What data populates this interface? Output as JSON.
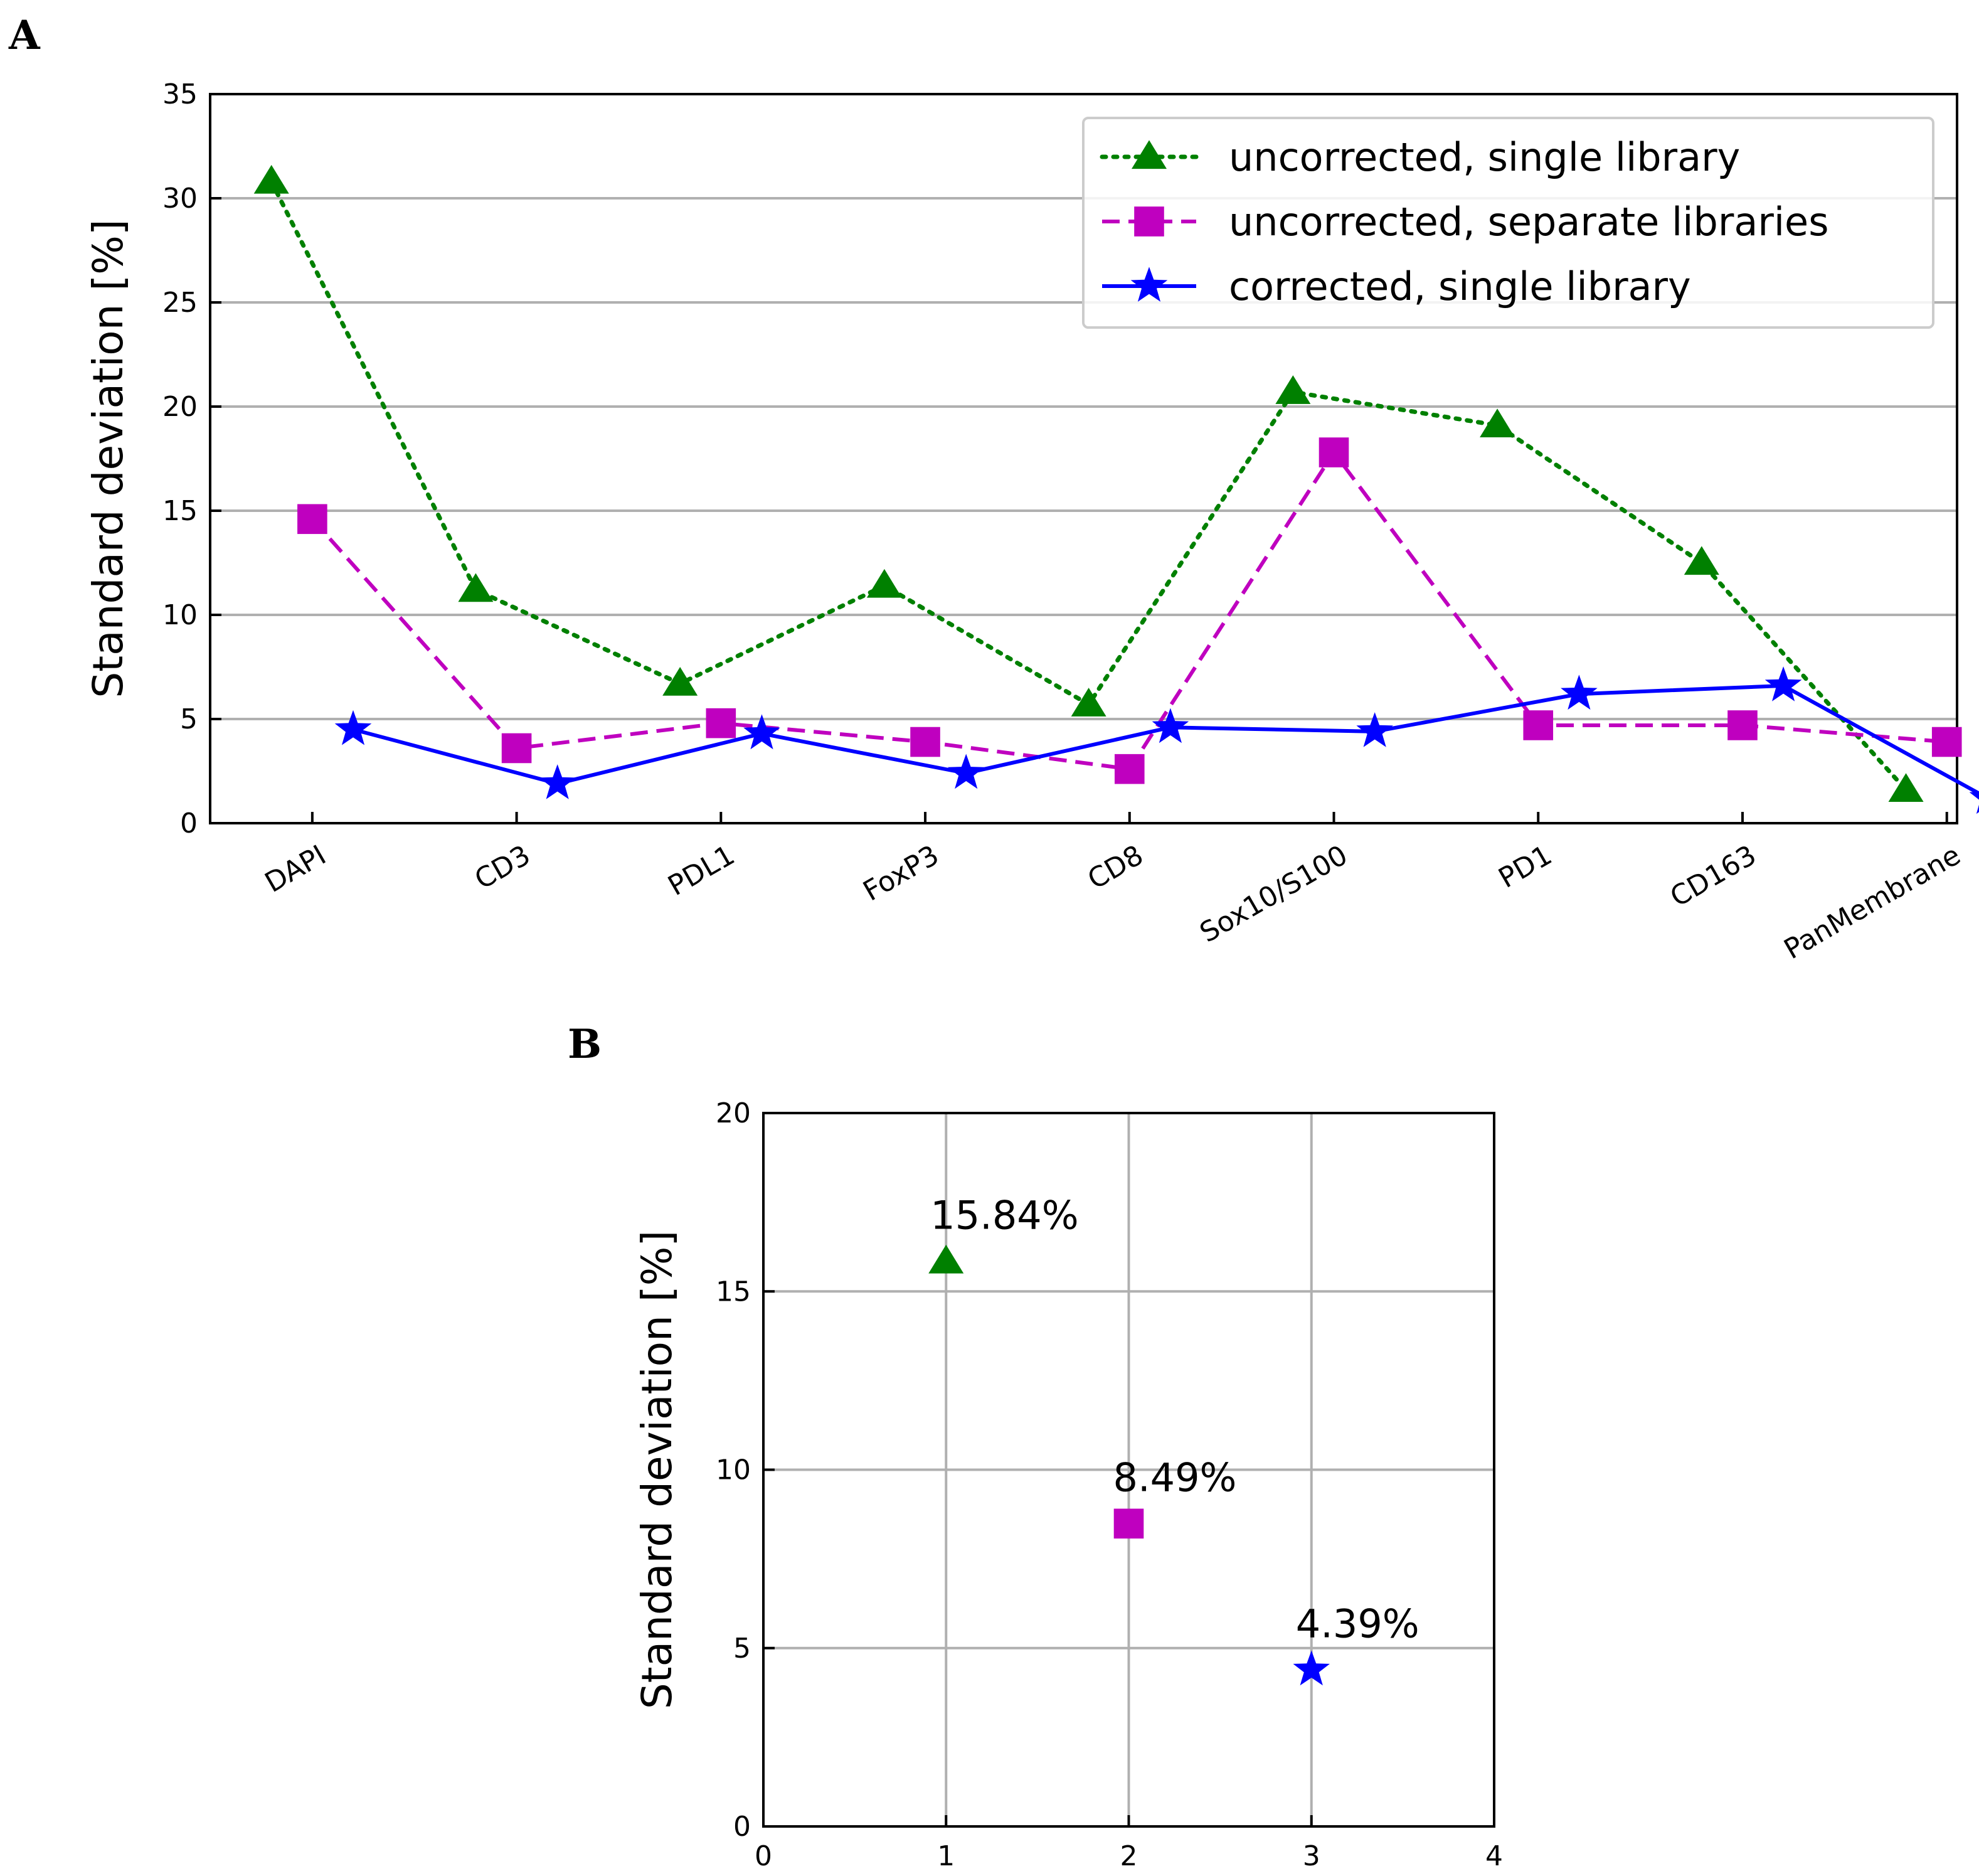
{
  "figure": {
    "panel_a_label": "A",
    "panel_b_label": "B"
  },
  "chart_data": [
    {
      "id": "A",
      "type": "line",
      "title": "",
      "xlabel": "",
      "ylabel": "Standard deviation [%]",
      "categories": [
        "DAPI",
        "CD3",
        "PDL1",
        "FoxP3",
        "CD8",
        "Sox10/S100",
        "PD1",
        "CD163",
        "PanMembrane"
      ],
      "ylim": [
        0,
        35
      ],
      "yticks": [
        0,
        5,
        10,
        15,
        20,
        25,
        30,
        35
      ],
      "grid": "horizontal",
      "legend_position": "top-right",
      "series": [
        {
          "name": "uncorrected, single library",
          "color": "#008000",
          "marker": "triangle",
          "linestyle": "dotted",
          "offset": -0.2,
          "values": [
            30.8,
            11.2,
            6.7,
            11.4,
            5.7,
            20.7,
            19.1,
            12.5,
            1.6
          ]
        },
        {
          "name": "uncorrected, separate libraries",
          "color": "#bf00bf",
          "marker": "square",
          "linestyle": "dashed",
          "offset": 0.0,
          "values": [
            14.6,
            3.6,
            4.8,
            3.9,
            2.6,
            17.8,
            4.7,
            4.7,
            3.9
          ]
        },
        {
          "name": "corrected, single library",
          "color": "#0000ff",
          "marker": "star",
          "linestyle": "solid",
          "offset": 0.2,
          "values": [
            4.5,
            1.9,
            4.3,
            2.4,
            4.6,
            4.4,
            6.2,
            6.6,
            1.2
          ]
        }
      ]
    },
    {
      "id": "B",
      "type": "scatter",
      "title": "",
      "xlabel": "",
      "ylabel": "Standard deviation [%]",
      "xlim": [
        0,
        4
      ],
      "ylim": [
        0,
        20
      ],
      "xticks": [
        0,
        1,
        2,
        3,
        4
      ],
      "yticks": [
        0,
        5,
        10,
        15,
        20
      ],
      "grid": "both",
      "points": [
        {
          "x": 1,
          "y": 15.84,
          "label": "15.84%",
          "color": "#008000",
          "marker": "triangle"
        },
        {
          "x": 2,
          "y": 8.49,
          "label": "8.49%",
          "color": "#bf00bf",
          "marker": "square"
        },
        {
          "x": 3,
          "y": 4.39,
          "label": "4.39%",
          "color": "#0000ff",
          "marker": "star"
        }
      ]
    }
  ]
}
